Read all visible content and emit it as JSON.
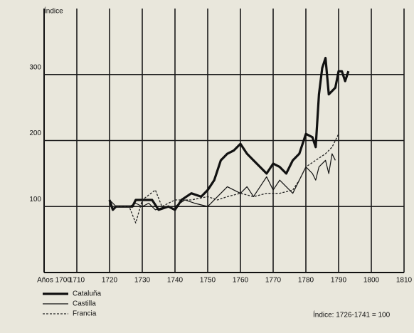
{
  "chart_data": {
    "type": "line",
    "y_label": "Índice",
    "note": "Índice: 1726-1741 = 100",
    "xlim": [
      1700,
      1810
    ],
    "xticks": [
      {
        "value": 1700,
        "label": "Años 1700"
      },
      1710,
      1720,
      1730,
      1740,
      1750,
      1760,
      1770,
      1780,
      1790,
      1800,
      1810
    ],
    "ylim": [
      0,
      400
    ],
    "yticks": [
      100,
      200,
      300
    ],
    "grid": true,
    "series": [
      {
        "name": "Cataluña",
        "color": "#111111",
        "style": "thick",
        "x": [
          1720,
          1721,
          1722,
          1727,
          1728,
          1730,
          1733,
          1735,
          1738,
          1740,
          1742,
          1745,
          1748,
          1750,
          1752,
          1754,
          1756,
          1758,
          1760,
          1762,
          1764,
          1766,
          1768,
          1770,
          1772,
          1774,
          1776,
          1778,
          1780,
          1782,
          1783,
          1784,
          1785,
          1786,
          1787,
          1789,
          1790,
          1791,
          1792,
          1793
        ],
        "values": [
          110,
          95,
          100,
          100,
          110,
          110,
          110,
          95,
          100,
          95,
          110,
          120,
          115,
          125,
          140,
          170,
          180,
          185,
          195,
          180,
          170,
          160,
          150,
          165,
          160,
          150,
          170,
          180,
          210,
          205,
          190,
          270,
          310,
          325,
          270,
          280,
          305,
          305,
          290,
          305
        ]
      },
      {
        "name": "Castilla",
        "color": "#111111",
        "style": "thin",
        "x": [
          1720,
          1722,
          1726,
          1728,
          1730,
          1732,
          1734,
          1737,
          1740,
          1743,
          1746,
          1750,
          1752,
          1754,
          1756,
          1758,
          1760,
          1762,
          1764,
          1766,
          1768,
          1770,
          1772,
          1774,
          1776,
          1778,
          1780,
          1782,
          1783,
          1784,
          1786,
          1787,
          1788,
          1789
        ],
        "values": [
          110,
          100,
          100,
          105,
          100,
          105,
          95,
          100,
          100,
          110,
          105,
          100,
          110,
          120,
          130,
          125,
          120,
          130,
          115,
          130,
          145,
          125,
          140,
          130,
          120,
          140,
          160,
          150,
          140,
          160,
          170,
          150,
          180,
          170
        ]
      },
      {
        "name": "Francia",
        "color": "#222222",
        "style": "dashed",
        "x": [
          1720,
          1726,
          1728,
          1730,
          1734,
          1736,
          1740,
          1745,
          1750,
          1753,
          1756,
          1760,
          1764,
          1768,
          1772,
          1776,
          1778,
          1780,
          1783,
          1786,
          1788,
          1790
        ],
        "values": [
          100,
          100,
          75,
          110,
          125,
          100,
          110,
          110,
          115,
          110,
          115,
          120,
          115,
          120,
          120,
          125,
          140,
          160,
          170,
          180,
          190,
          210
        ]
      }
    ]
  }
}
